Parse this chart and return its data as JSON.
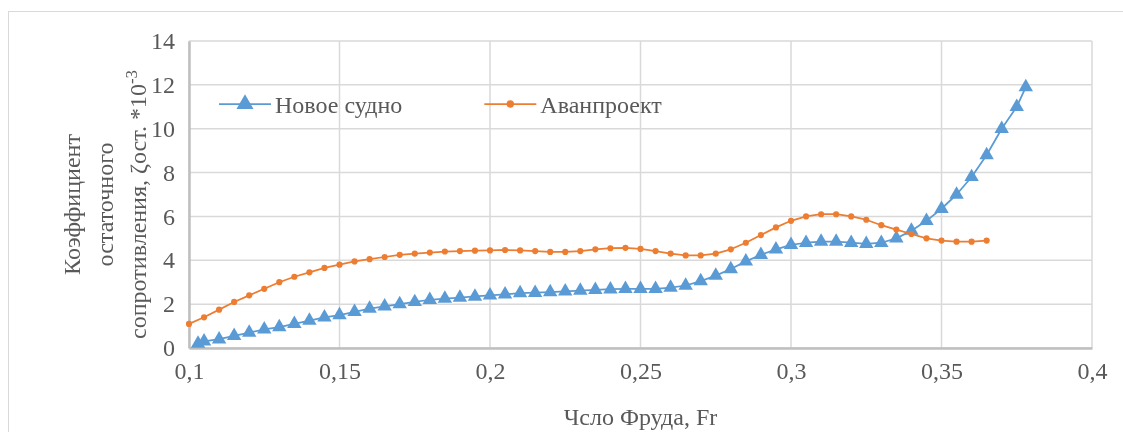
{
  "chart_data": {
    "type": "line",
    "xlabel": "Чсло Фруда, Fr",
    "ylabel": "Коэффициент остаточного сопротивления, ζост. *10$^{-3}$",
    "xlim": [
      0.1,
      0.4
    ],
    "xticks": [
      {
        "value": 0.1,
        "label": "0,1"
      },
      {
        "value": 0.15,
        "label": "0,15"
      },
      {
        "value": 0.2,
        "label": "0,2"
      },
      {
        "value": 0.25,
        "label": "0,25"
      },
      {
        "value": 0.3,
        "label": "0,3"
      },
      {
        "value": 0.35,
        "label": "0,35"
      },
      {
        "value": 0.4,
        "label": "0,4"
      }
    ],
    "ylim": [
      0,
      14
    ],
    "yticks": [
      0,
      2,
      4,
      6,
      8,
      10,
      12,
      14
    ],
    "grid": true,
    "legend": "top left",
    "series": [
      {
        "name": "Новое судно",
        "color": "#5b9bd5",
        "marker": "triangle",
        "x": [
          0.103,
          0.105,
          0.11,
          0.115,
          0.12,
          0.125,
          0.13,
          0.135,
          0.14,
          0.145,
          0.15,
          0.155,
          0.16,
          0.165,
          0.17,
          0.175,
          0.18,
          0.185,
          0.19,
          0.195,
          0.2,
          0.205,
          0.21,
          0.215,
          0.22,
          0.225,
          0.23,
          0.235,
          0.24,
          0.245,
          0.25,
          0.255,
          0.26,
          0.265,
          0.27,
          0.275,
          0.28,
          0.285,
          0.29,
          0.295,
          0.3,
          0.305,
          0.31,
          0.315,
          0.32,
          0.325,
          0.33,
          0.335,
          0.34,
          0.345,
          0.35,
          0.355,
          0.36,
          0.365,
          0.37,
          0.375,
          0.378
        ],
        "values": [
          0.2,
          0.3,
          0.4,
          0.55,
          0.7,
          0.85,
          0.95,
          1.1,
          1.25,
          1.4,
          1.5,
          1.65,
          1.8,
          1.9,
          2.0,
          2.1,
          2.2,
          2.25,
          2.3,
          2.35,
          2.4,
          2.45,
          2.5,
          2.52,
          2.55,
          2.58,
          2.62,
          2.65,
          2.68,
          2.7,
          2.7,
          2.7,
          2.75,
          2.85,
          3.05,
          3.3,
          3.6,
          3.95,
          4.25,
          4.5,
          4.7,
          4.8,
          4.85,
          4.85,
          4.8,
          4.75,
          4.8,
          5.0,
          5.35,
          5.8,
          6.35,
          7.0,
          7.8,
          8.8,
          10.0,
          11.0,
          11.9
        ]
      },
      {
        "name": "Аванпроект",
        "color": "#ed7d31",
        "marker": "circle",
        "x": [
          0.1,
          0.105,
          0.11,
          0.115,
          0.12,
          0.125,
          0.13,
          0.135,
          0.14,
          0.145,
          0.15,
          0.155,
          0.16,
          0.165,
          0.17,
          0.175,
          0.18,
          0.185,
          0.19,
          0.195,
          0.2,
          0.205,
          0.21,
          0.215,
          0.22,
          0.225,
          0.23,
          0.235,
          0.24,
          0.245,
          0.25,
          0.255,
          0.26,
          0.265,
          0.27,
          0.275,
          0.28,
          0.285,
          0.29,
          0.295,
          0.3,
          0.305,
          0.31,
          0.315,
          0.32,
          0.325,
          0.33,
          0.335,
          0.34,
          0.345,
          0.35,
          0.355,
          0.36,
          0.365
        ],
        "values": [
          1.1,
          1.4,
          1.75,
          2.1,
          2.4,
          2.7,
          3.0,
          3.25,
          3.45,
          3.65,
          3.8,
          3.95,
          4.05,
          4.15,
          4.25,
          4.3,
          4.35,
          4.4,
          4.42,
          4.44,
          4.45,
          4.47,
          4.45,
          4.42,
          4.38,
          4.38,
          4.42,
          4.5,
          4.55,
          4.57,
          4.52,
          4.42,
          4.3,
          4.22,
          4.22,
          4.3,
          4.5,
          4.8,
          5.15,
          5.5,
          5.8,
          6.0,
          6.1,
          6.1,
          6.0,
          5.85,
          5.6,
          5.4,
          5.2,
          5.0,
          4.9,
          4.85,
          4.85,
          4.9
        ]
      }
    ]
  }
}
